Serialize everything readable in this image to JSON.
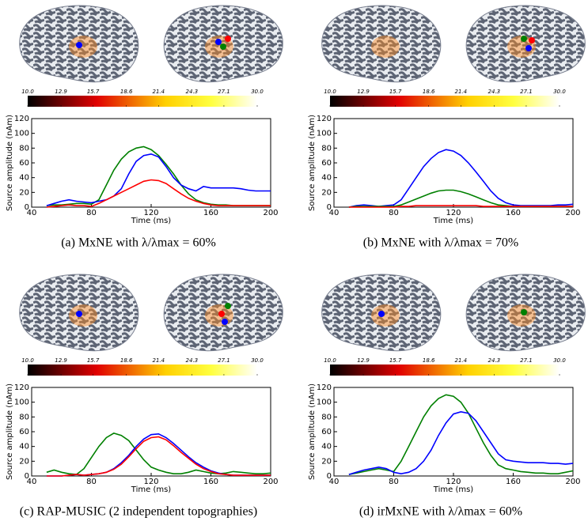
{
  "colorbar": {
    "ticks": [
      {
        "value": 10,
        "label": "10.0"
      },
      {
        "value": 12.9,
        "label": "12.9"
      },
      {
        "value": 15.7,
        "label": "15.7"
      },
      {
        "value": 18.6,
        "label": "18.6"
      },
      {
        "value": 21.4,
        "label": "21.4"
      },
      {
        "value": 24.3,
        "label": "24.3"
      },
      {
        "value": 27.1,
        "label": "27.1"
      },
      {
        "value": 30,
        "label": "30.0"
      }
    ]
  },
  "chart_data": [
    {
      "type": "line",
      "caption": "(a) MxNE with λ/λmax = 60%",
      "xlabel": "Time (ms)",
      "ylabel": "Source amplitude (nAm)",
      "xlim": [
        40,
        200
      ],
      "ylim": [
        0,
        120
      ],
      "xticks": [
        40,
        80,
        120,
        160,
        200
      ],
      "yticks": [
        0,
        20,
        40,
        60,
        80,
        100,
        120
      ],
      "x": [
        50,
        55,
        60,
        65,
        70,
        75,
        80,
        85,
        90,
        95,
        100,
        105,
        110,
        115,
        120,
        125,
        130,
        135,
        140,
        145,
        150,
        155,
        160,
        165,
        170,
        175,
        180,
        185,
        190,
        195,
        200
      ],
      "series": [
        {
          "color": "#008000",
          "values": [
            2,
            3,
            3,
            4,
            5,
            5,
            4,
            10,
            30,
            50,
            65,
            75,
            80,
            82,
            78,
            70,
            58,
            45,
            30,
            18,
            10,
            6,
            4,
            3,
            3,
            2,
            2,
            2,
            2,
            2,
            2
          ]
        },
        {
          "color": "#0000ff",
          "values": [
            2,
            5,
            8,
            10,
            8,
            7,
            6,
            8,
            10,
            15,
            25,
            45,
            62,
            70,
            72,
            68,
            55,
            40,
            30,
            25,
            22,
            28,
            26,
            26,
            26,
            26,
            25,
            23,
            22,
            22,
            22
          ]
        },
        {
          "color": "#ff0000",
          "values": [
            0,
            1,
            2,
            3,
            2,
            2,
            1,
            5,
            10,
            15,
            20,
            25,
            30,
            35,
            37,
            36,
            32,
            25,
            18,
            12,
            8,
            5,
            3,
            2,
            2,
            2,
            2,
            2,
            2,
            2,
            2
          ]
        }
      ]
    },
    {
      "type": "line",
      "caption": "(b) MxNE with λ/λmax = 70%",
      "xlabel": "Time (ms)",
      "ylabel": "Source amplitude (nAm)",
      "xlim": [
        40,
        200
      ],
      "ylim": [
        0,
        120
      ],
      "xticks": [
        40,
        80,
        120,
        160,
        200
      ],
      "yticks": [
        0,
        20,
        40,
        60,
        80,
        100,
        120
      ],
      "x": [
        50,
        55,
        60,
        65,
        70,
        75,
        80,
        85,
        90,
        95,
        100,
        105,
        110,
        115,
        120,
        125,
        130,
        135,
        140,
        145,
        150,
        155,
        160,
        165,
        170,
        175,
        180,
        185,
        190,
        195,
        200
      ],
      "series": [
        {
          "color": "#0000ff",
          "values": [
            0,
            2,
            3,
            2,
            1,
            2,
            3,
            10,
            25,
            40,
            55,
            66,
            74,
            78,
            76,
            70,
            60,
            48,
            35,
            22,
            12,
            6,
            3,
            2,
            2,
            2,
            2,
            2,
            3,
            3,
            4
          ]
        },
        {
          "color": "#008000",
          "values": [
            0,
            1,
            1,
            1,
            1,
            1,
            1,
            3,
            7,
            11,
            15,
            19,
            22,
            23,
            23,
            21,
            18,
            14,
            10,
            6,
            3,
            2,
            1,
            1,
            1,
            1,
            1,
            1,
            1,
            1,
            1
          ]
        },
        {
          "color": "#ff0000",
          "values": [
            0,
            0,
            0,
            0,
            0,
            0,
            0,
            1,
            1,
            2,
            2,
            2,
            2,
            2,
            2,
            2,
            2,
            2,
            1,
            1,
            1,
            1,
            1,
            1,
            1,
            1,
            1,
            1,
            1,
            1,
            1
          ]
        }
      ]
    },
    {
      "type": "line",
      "caption": "(c) RAP-MUSIC (2 independent topographies)",
      "xlabel": "Time (ms)",
      "ylabel": "Source amplitude (nAm)",
      "xlim": [
        40,
        200
      ],
      "ylim": [
        0,
        120
      ],
      "xticks": [
        40,
        80,
        120,
        160,
        200
      ],
      "yticks": [
        0,
        20,
        40,
        60,
        80,
        100,
        120
      ],
      "x": [
        50,
        55,
        60,
        65,
        70,
        75,
        80,
        85,
        90,
        95,
        100,
        105,
        110,
        115,
        120,
        125,
        130,
        135,
        140,
        145,
        150,
        155,
        160,
        165,
        170,
        175,
        180,
        185,
        190,
        195,
        200
      ],
      "series": [
        {
          "color": "#008000",
          "values": [
            5,
            8,
            5,
            3,
            2,
            10,
            25,
            40,
            52,
            58,
            55,
            48,
            35,
            22,
            12,
            8,
            5,
            3,
            3,
            5,
            8,
            6,
            4,
            3,
            4,
            6,
            5,
            4,
            3,
            3,
            4
          ]
        },
        {
          "color": "#0000ff",
          "values": [
            0,
            0,
            0,
            1,
            2,
            1,
            2,
            3,
            5,
            10,
            18,
            28,
            40,
            50,
            56,
            57,
            52,
            44,
            35,
            26,
            18,
            12,
            7,
            4,
            2,
            1,
            1,
            1,
            1,
            1,
            1
          ]
        },
        {
          "color": "#ff0000",
          "values": [
            0,
            0,
            0,
            1,
            2,
            1,
            2,
            3,
            5,
            9,
            16,
            26,
            37,
            47,
            52,
            53,
            49,
            41,
            32,
            24,
            16,
            10,
            6,
            3,
            2,
            1,
            1,
            1,
            1,
            1,
            1
          ]
        }
      ]
    },
    {
      "type": "line",
      "caption": "(d) irMxNE with λ/λmax = 60%",
      "xlabel": "Time (ms)",
      "ylabel": "Source amplitude (nAm)",
      "xlim": [
        40,
        200
      ],
      "ylim": [
        0,
        120
      ],
      "xticks": [
        40,
        80,
        120,
        160,
        200
      ],
      "yticks": [
        0,
        20,
        40,
        60,
        80,
        100,
        120
      ],
      "x": [
        50,
        55,
        60,
        65,
        70,
        75,
        80,
        85,
        90,
        95,
        100,
        105,
        110,
        115,
        120,
        125,
        130,
        135,
        140,
        145,
        150,
        155,
        160,
        165,
        170,
        175,
        180,
        185,
        190,
        195,
        200
      ],
      "series": [
        {
          "color": "#008000",
          "values": [
            2,
            4,
            6,
            8,
            10,
            8,
            6,
            20,
            40,
            60,
            80,
            95,
            105,
            110,
            108,
            100,
            85,
            65,
            45,
            28,
            15,
            10,
            8,
            6,
            5,
            4,
            4,
            3,
            3,
            5,
            7
          ]
        },
        {
          "color": "#0000ff",
          "values": [
            2,
            5,
            8,
            10,
            12,
            10,
            5,
            3,
            5,
            10,
            20,
            35,
            55,
            72,
            84,
            87,
            85,
            75,
            60,
            45,
            30,
            22,
            20,
            19,
            18,
            18,
            18,
            17,
            17,
            16,
            17
          ]
        }
      ]
    }
  ]
}
